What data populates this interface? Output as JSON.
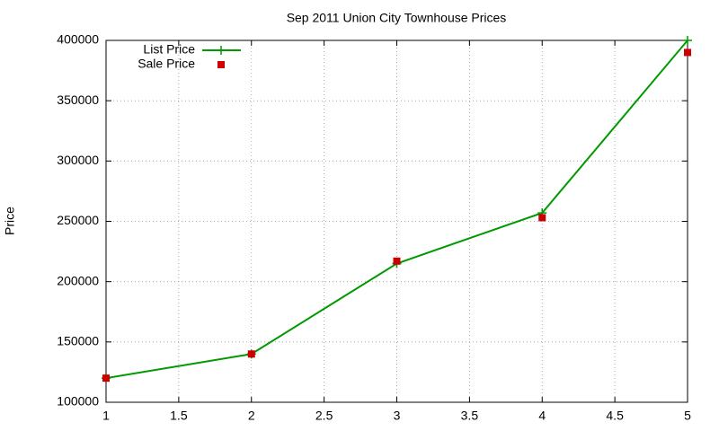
{
  "chart_data": {
    "type": "line",
    "title": "Sep 2011 Union City Townhouse Prices",
    "y_label": "Price",
    "x": [
      1,
      2,
      3,
      4,
      5
    ],
    "series": [
      {
        "name": "List Price",
        "color": "#009900",
        "line": true,
        "marker": "plus",
        "values": [
          120000,
          140000,
          215000,
          257000,
          400000
        ]
      },
      {
        "name": "Sale Price",
        "color": "#cc0000",
        "line": false,
        "marker": "square",
        "values": [
          120000,
          140000,
          217000,
          253000,
          390000
        ]
      }
    ],
    "xlim": [
      1,
      5
    ],
    "xticks": [
      1,
      1.5,
      2,
      2.5,
      3,
      3.5,
      4,
      4.5,
      5
    ],
    "ylim": [
      100000,
      400000
    ],
    "yticks": [
      100000,
      150000,
      200000,
      250000,
      300000,
      350000,
      400000
    ],
    "grid": true,
    "legend": "top-left"
  }
}
